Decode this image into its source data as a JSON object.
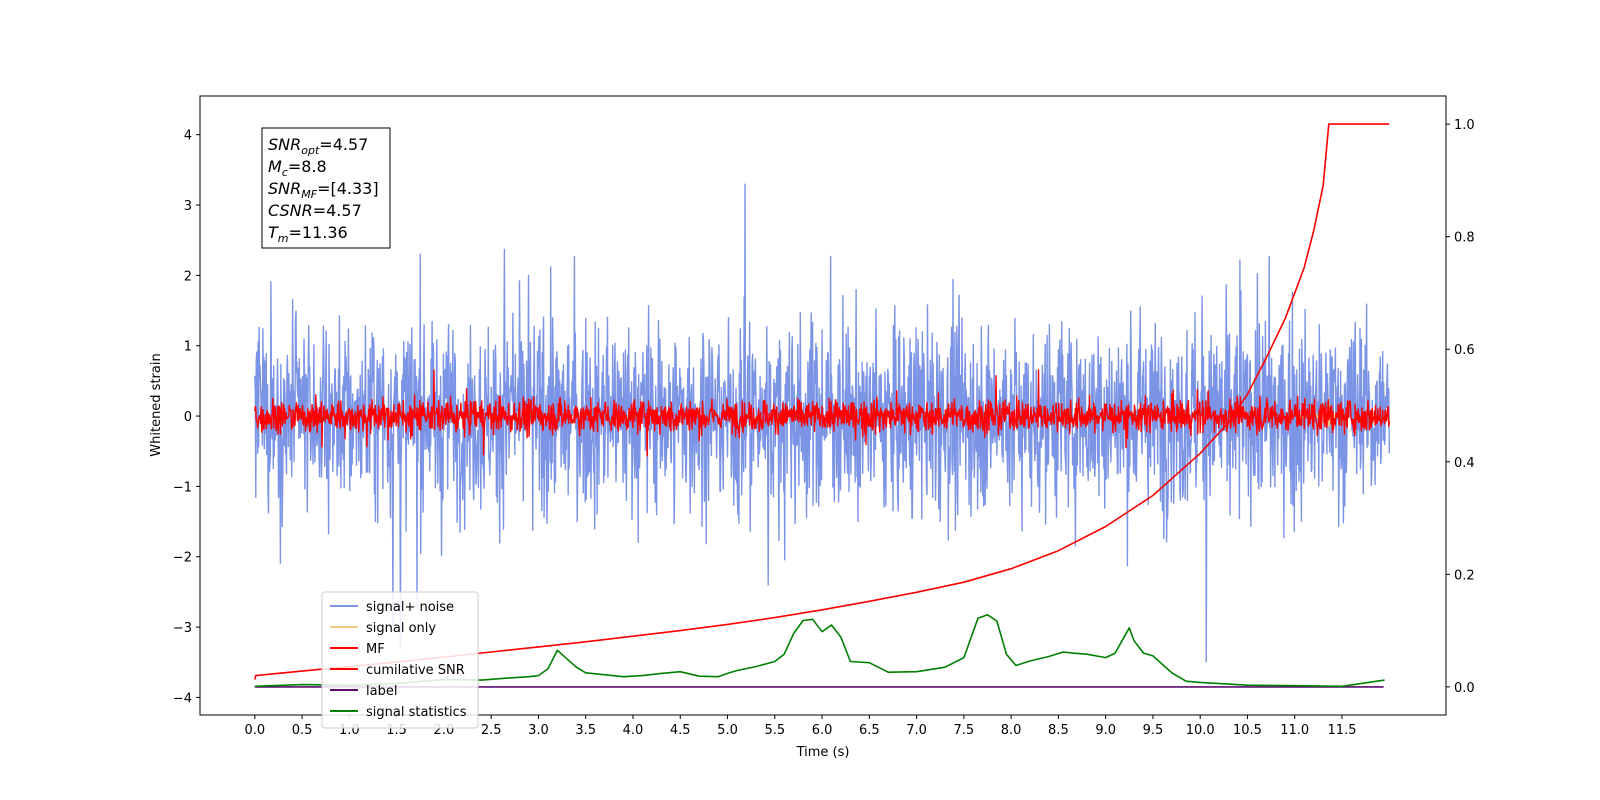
{
  "chart_data": {
    "type": "line",
    "title": "",
    "xlabel": "Time (s)",
    "ylabel": "Whitened strain",
    "xlim": [
      -0.58,
      12.6
    ],
    "ylim_left": [
      -4.25,
      4.55
    ],
    "ylim_right": [
      -0.05,
      1.05
    ],
    "x_ticks": [
      0.0,
      0.5,
      1.0,
      1.5,
      2.0,
      2.5,
      3.0,
      3.5,
      4.0,
      4.5,
      5.0,
      5.5,
      6.0,
      6.5,
      7.0,
      7.5,
      8.0,
      8.5,
      9.0,
      9.5,
      10.0,
      10.5,
      11.0,
      11.5
    ],
    "x_tick_labels": [
      "0.0",
      "0.5",
      "1.0",
      "1.5",
      "2.0",
      "2.5",
      "3.0",
      "3.5",
      "4.0",
      "4.5",
      "5.0",
      "5.5",
      "6.0",
      "6.5",
      "7.0",
      "7.5",
      "8.0",
      "8.5",
      "9.0",
      "9.5",
      "10.0",
      "10.5",
      "11.0",
      "11.5"
    ],
    "y_ticks_left": [
      -4,
      -3,
      -2,
      -1,
      0,
      1,
      2,
      3,
      4
    ],
    "y_tick_labels_left": [
      "−4",
      "−3",
      "−2",
      "−1",
      "0",
      "1",
      "2",
      "3",
      "4"
    ],
    "y_ticks_right": [
      0.0,
      0.2,
      0.4,
      0.6,
      0.8,
      1.0
    ],
    "y_tick_labels_right": [
      "0.0",
      "0.2",
      "0.4",
      "0.6",
      "0.8",
      "1.0"
    ],
    "grid": false,
    "legend_position": "lower-left",
    "stats_box": {
      "lines": [
        {
          "base": "SNR",
          "sub": "opt",
          "value": "=4.57"
        },
        {
          "base": "M",
          "sub": "c",
          "value": "=8.8"
        },
        {
          "base": "SNR",
          "sub": "MF",
          "value": "=[4.33]"
        },
        {
          "base": "CSNR",
          "sub": "",
          "value": "=4.57"
        },
        {
          "base": "T",
          "sub": "m",
          "value": "=11.36"
        }
      ]
    },
    "series": [
      {
        "name": "signal+ noise",
        "axis": "left",
        "color": "#7b94e6",
        "style": "noise",
        "sd": 0.95,
        "x_range": [
          0.0,
          12.0
        ]
      },
      {
        "name": "signal only",
        "axis": "left",
        "color": "#f5c97a",
        "style": "chirp",
        "merger_time": 11.36
      },
      {
        "name": "MF",
        "axis": "left",
        "color": "#ff0000",
        "style": "noise",
        "sd": 0.16,
        "x_range": [
          0.0,
          12.0
        ]
      },
      {
        "name": "cumilative SNR",
        "axis": "right",
        "color": "#ff0000",
        "x": [
          0.0,
          0.01,
          0.5,
          1.0,
          1.5,
          2.0,
          2.5,
          3.0,
          3.5,
          4.0,
          4.5,
          5.0,
          5.5,
          6.0,
          6.5,
          7.0,
          7.5,
          8.0,
          8.5,
          9.0,
          9.5,
          10.0,
          10.3,
          10.5,
          10.7,
          10.9,
          11.1,
          11.2,
          11.3,
          11.36,
          11.5,
          12.0
        ],
        "y": [
          0.013,
          0.02,
          0.028,
          0.036,
          0.044,
          0.053,
          0.062,
          0.071,
          0.08,
          0.09,
          0.1,
          0.111,
          0.123,
          0.137,
          0.152,
          0.168,
          0.186,
          0.21,
          0.242,
          0.285,
          0.34,
          0.415,
          0.47,
          0.52,
          0.585,
          0.655,
          0.745,
          0.81,
          0.89,
          1.0,
          1.0,
          1.0
        ]
      },
      {
        "name": "label",
        "axis": "right",
        "color": "#5b0a6e",
        "x": [
          0.0,
          11.94
        ],
        "y": [
          0.0,
          0.0
        ]
      },
      {
        "name": "signal statistics",
        "axis": "right",
        "color": "#008000",
        "x": [
          0.0,
          0.5,
          1.0,
          1.5,
          2.0,
          2.4,
          2.7,
          2.9,
          3.0,
          3.1,
          3.2,
          3.4,
          3.5,
          3.9,
          4.1,
          4.3,
          4.5,
          4.7,
          4.9,
          5.0,
          5.1,
          5.3,
          5.5,
          5.6,
          5.7,
          5.8,
          5.9,
          6.0,
          6.1,
          6.2,
          6.3,
          6.5,
          6.7,
          7.0,
          7.3,
          7.5,
          7.65,
          7.75,
          7.85,
          7.95,
          8.05,
          8.2,
          8.4,
          8.55,
          8.65,
          8.8,
          9.0,
          9.1,
          9.2,
          9.25,
          9.3,
          9.4,
          9.5,
          9.7,
          9.85,
          10.0,
          10.5,
          11.0,
          11.5,
          11.95
        ],
        "y": [
          0.001,
          0.004,
          0.003,
          0.006,
          0.013,
          0.012,
          0.016,
          0.018,
          0.02,
          0.032,
          0.065,
          0.035,
          0.025,
          0.018,
          0.02,
          0.024,
          0.027,
          0.019,
          0.018,
          0.024,
          0.029,
          0.036,
          0.045,
          0.058,
          0.095,
          0.118,
          0.12,
          0.098,
          0.11,
          0.088,
          0.045,
          0.043,
          0.026,
          0.027,
          0.035,
          0.052,
          0.122,
          0.128,
          0.117,
          0.058,
          0.038,
          0.046,
          0.054,
          0.062,
          0.06,
          0.058,
          0.052,
          0.06,
          0.09,
          0.105,
          0.082,
          0.06,
          0.055,
          0.025,
          0.01,
          0.008,
          0.003,
          0.002,
          0.001,
          0.012
        ]
      }
    ]
  }
}
